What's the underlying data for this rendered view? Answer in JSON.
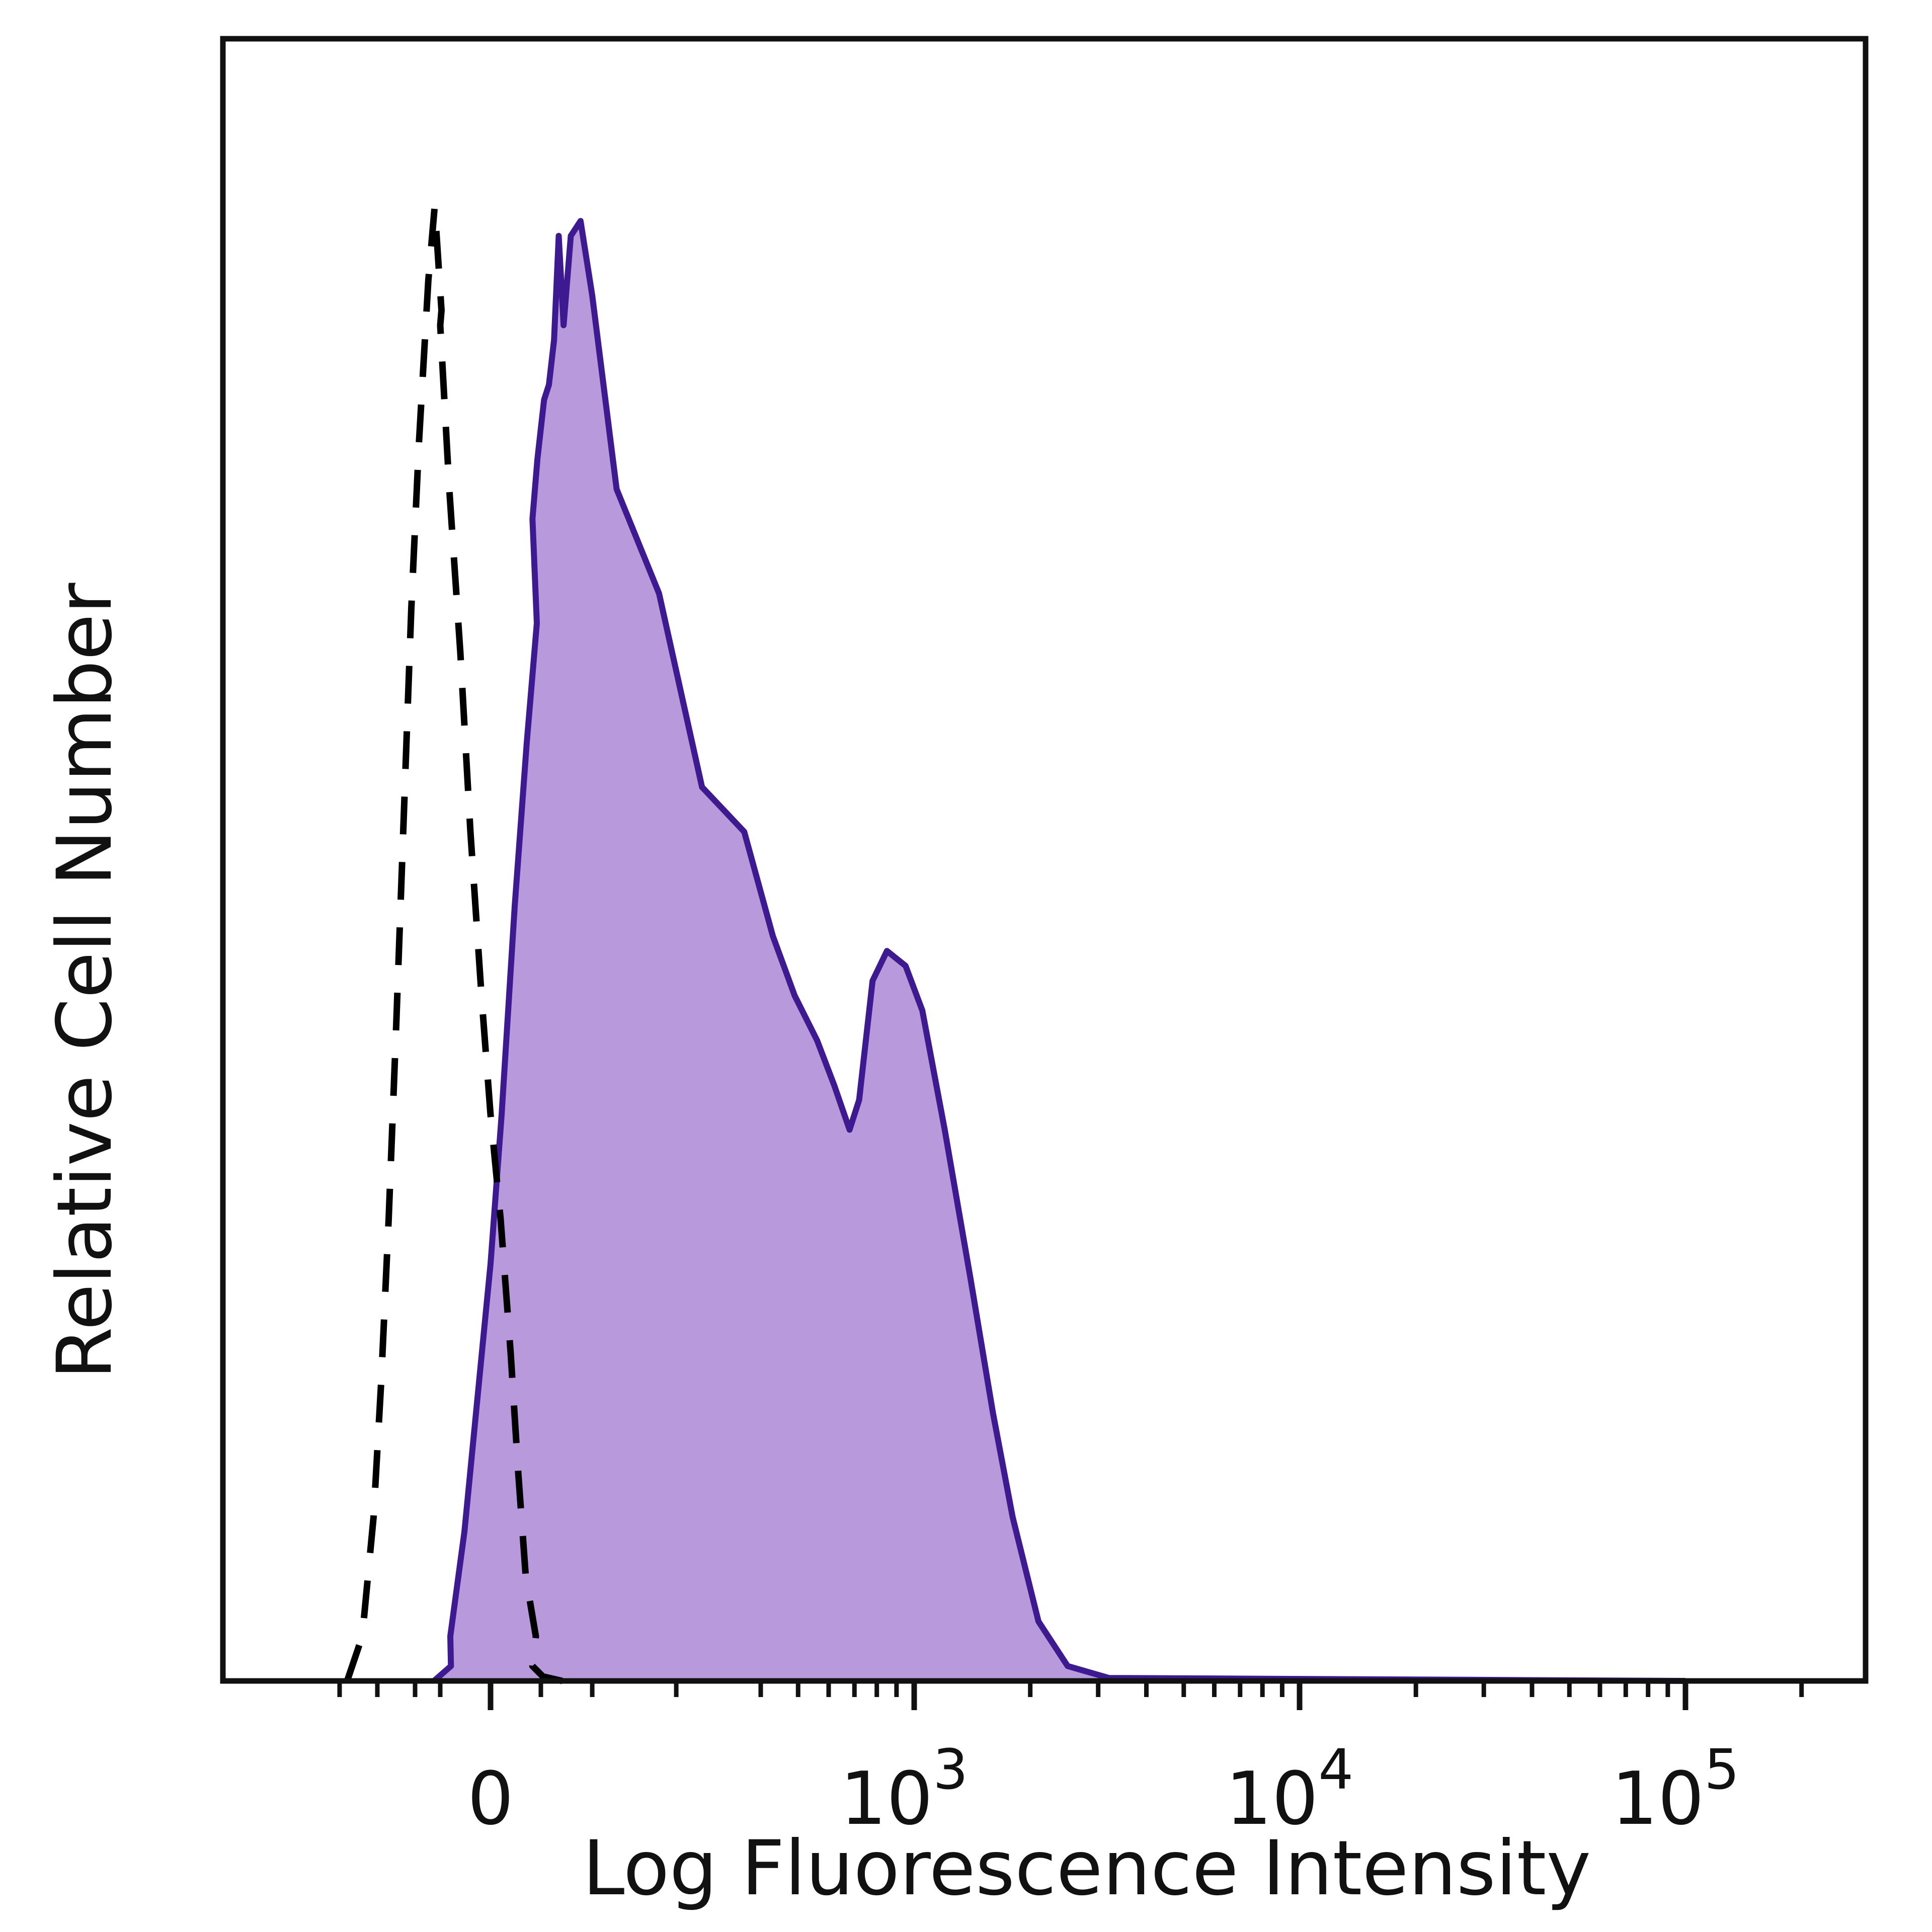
{
  "chart_data": {
    "type": "area",
    "title": "",
    "xlabel": "Log Fluorescence Intensity",
    "ylabel": "Relative Cell Number",
    "x_scale": "biexponential",
    "x_tick_labels": [
      {
        "value": 0,
        "mantissa": "0",
        "exponent": ""
      },
      {
        "value": 1000,
        "mantissa": "10",
        "exponent": "3"
      },
      {
        "value": 10000,
        "mantissa": "10",
        "exponent": "4"
      },
      {
        "value": 100000,
        "mantissa": "10",
        "exponent": "5"
      }
    ],
    "ylim": [
      0,
      100
    ],
    "grid": false,
    "legend": "none",
    "series": [
      {
        "style": "filled",
        "fill_color": "#b899dc",
        "line_color": "#3d1a8f",
        "points": [
          [
            -150,
            0
          ],
          [
            -105,
            1.0
          ],
          [
            -80,
            3.0
          ],
          [
            -52,
            10
          ],
          [
            -26,
            19
          ],
          [
            0,
            28
          ],
          [
            22,
            38
          ],
          [
            48,
            52
          ],
          [
            72,
            63
          ],
          [
            92,
            71
          ],
          [
            110,
            78
          ],
          [
            120,
            82
          ],
          [
            132,
            86
          ],
          [
            140,
            87
          ],
          [
            148,
            90
          ],
          [
            155,
            97
          ],
          [
            162,
            91
          ],
          [
            172,
            97
          ],
          [
            185,
            98
          ],
          [
            200,
            93
          ],
          [
            230,
            80
          ],
          [
            280,
            73
          ],
          [
            330,
            60
          ],
          [
            380,
            57
          ],
          [
            430,
            50
          ],
          [
            490,
            46
          ],
          [
            560,
            43
          ],
          [
            620,
            40
          ],
          [
            680,
            37
          ],
          [
            720,
            39
          ],
          [
            780,
            47
          ],
          [
            850,
            49
          ],
          [
            950,
            48
          ],
          [
            1050,
            45
          ],
          [
            1200,
            37
          ],
          [
            1400,
            27
          ],
          [
            1600,
            18
          ],
          [
            1800,
            11
          ],
          [
            2100,
            4
          ],
          [
            2500,
            1.0
          ],
          [
            3200,
            0.2
          ],
          [
            100000,
            0
          ]
        ]
      },
      {
        "style": "dashed",
        "line_color": "#000000",
        "points": [
          [
            -380,
            0
          ],
          [
            -340,
            3
          ],
          [
            -310,
            11
          ],
          [
            -290,
            20
          ],
          [
            -270,
            31
          ],
          [
            -250,
            44
          ],
          [
            -230,
            58
          ],
          [
            -210,
            72
          ],
          [
            -190,
            83
          ],
          [
            -165,
            94
          ],
          [
            -148,
            99
          ],
          [
            -130,
            92
          ],
          [
            -100,
            91
          ],
          [
            -82,
            80
          ],
          [
            -60,
            69
          ],
          [
            -40,
            57
          ],
          [
            -18,
            46
          ],
          [
            0,
            38
          ],
          [
            20,
            31
          ],
          [
            40,
            22
          ],
          [
            55,
            14
          ],
          [
            70,
            7
          ],
          [
            90,
            3
          ],
          [
            110,
            1
          ],
          [
            130,
            0.3
          ],
          [
            160,
            0
          ]
        ]
      }
    ]
  }
}
